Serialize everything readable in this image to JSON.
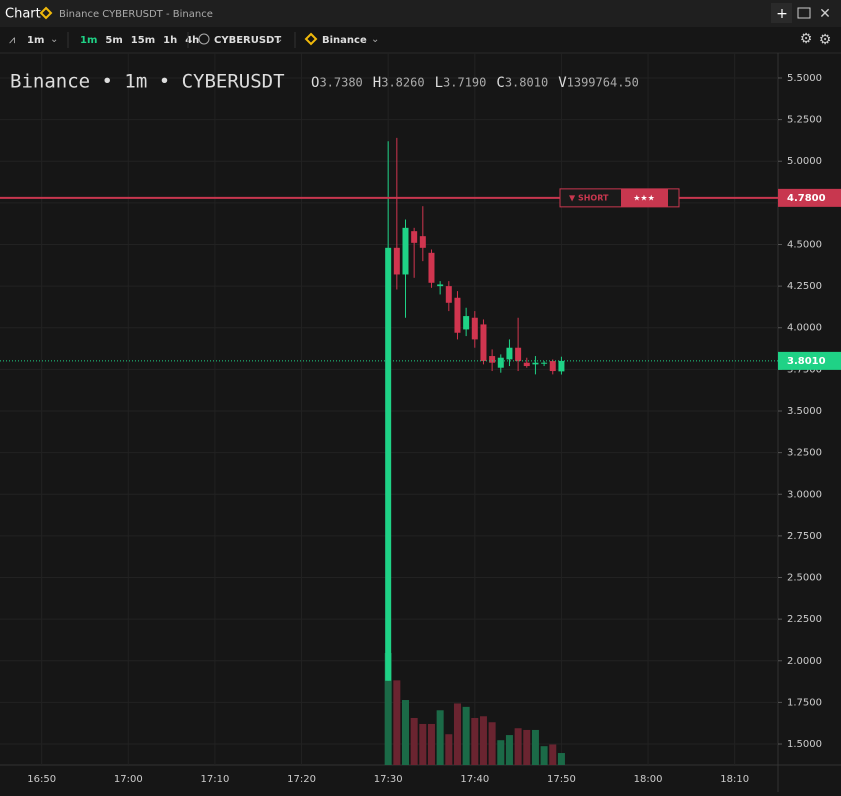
{
  "window": {
    "title": "Chart",
    "subtitle": "Binance CYBERUSDT - Binance"
  },
  "toolbar": {
    "interval": "1m",
    "intervals": [
      "1m",
      "5m",
      "15m",
      "1h",
      "4h"
    ],
    "symbol": "CYBERUSDT",
    "exchange": "Binance"
  },
  "chart_data": {
    "type": "candlestick",
    "title": "Binance • 1m • CYBERUSDT",
    "legend": [
      {
        "key": "O",
        "value": "3.7380"
      },
      {
        "key": "H",
        "value": "3.8260"
      },
      {
        "key": "L",
        "value": "3.7190"
      },
      {
        "key": "C",
        "value": "3.8010"
      },
      {
        "key": "V",
        "value": "1399764.50"
      }
    ],
    "x": [
      "17:30",
      "17:31",
      "17:32",
      "17:33",
      "17:34",
      "17:35",
      "17:36",
      "17:37",
      "17:38",
      "17:39",
      "17:40",
      "17:41",
      "17:42",
      "17:43",
      "17:44",
      "17:45",
      "17:46",
      "17:47",
      "17:48",
      "17:49",
      "17:50"
    ],
    "open": [
      1.88,
      4.48,
      4.32,
      4.58,
      4.55,
      4.45,
      4.25,
      4.25,
      4.18,
      3.99,
      4.06,
      4.02,
      3.83,
      3.76,
      3.81,
      3.88,
      3.79,
      3.78,
      3.79,
      3.8,
      3.738
    ],
    "high": [
      5.12,
      5.14,
      4.65,
      4.6,
      4.73,
      4.47,
      4.28,
      4.28,
      4.22,
      4.12,
      4.1,
      4.05,
      3.87,
      3.84,
      3.93,
      4.06,
      3.82,
      3.83,
      3.8,
      3.81,
      3.826
    ],
    "low": [
      1.88,
      4.23,
      4.06,
      4.3,
      4.4,
      4.24,
      4.2,
      4.1,
      3.93,
      3.95,
      3.88,
      3.78,
      3.74,
      3.73,
      3.77,
      3.74,
      3.76,
      3.72,
      3.77,
      3.72,
      3.719
    ],
    "close": [
      4.48,
      4.32,
      4.6,
      4.51,
      4.48,
      4.27,
      4.26,
      4.15,
      3.97,
      4.07,
      3.93,
      3.8,
      3.79,
      3.82,
      3.88,
      3.8,
      3.77,
      3.79,
      3.79,
      3.74,
      3.801
    ],
    "volume": [
      13100000,
      9900000,
      7600000,
      5500000,
      4800000,
      4800000,
      6400000,
      3600000,
      7200000,
      6800000,
      5500000,
      5700000,
      5000000,
      2900000,
      3500000,
      4300000,
      4100000,
      4100000,
      2200000,
      2400000,
      1399764.5
    ],
    "up_color": "#1fd286",
    "down_color": "#d0354f",
    "volume_up_color": "#1b6a47",
    "volume_down_color": "#6a2430",
    "volume_lim": [
      0,
      13100000
    ],
    "xlim": [
      "16:46",
      "18:15"
    ],
    "xticks": [
      "16:50",
      "17:00",
      "17:10",
      "17:20",
      "17:30",
      "17:40",
      "17:50",
      "18:00",
      "18:10"
    ],
    "ylim": [
      1.374,
      5.62
    ],
    "yticks": [
      {
        "value": 1.5,
        "label": "1.5000"
      },
      {
        "value": 1.75,
        "label": "1.7500"
      },
      {
        "value": 2,
        "label": "2.0000"
      },
      {
        "value": 2.25,
        "label": "2.2500"
      },
      {
        "value": 2.5,
        "label": "2.5000"
      },
      {
        "value": 2.75,
        "label": "2.7500"
      },
      {
        "value": 3,
        "label": "3.0000"
      },
      {
        "value": 3.25,
        "label": "3.2500"
      },
      {
        "value": 3.5,
        "label": "3.5000"
      },
      {
        "value": 3.75,
        "label": "3.7500"
      },
      {
        "value": 4,
        "label": "4.0000"
      },
      {
        "value": 4.25,
        "label": "4.2500"
      },
      {
        "value": 4.5,
        "label": "4.5000"
      },
      {
        "value": 4.75,
        "label": "4.7500"
      },
      {
        "value": 5,
        "label": "5.0000"
      },
      {
        "value": 5.25,
        "label": "5.2500"
      },
      {
        "value": 5.5,
        "label": "5.5000"
      }
    ],
    "grid": true,
    "price_lines": [
      {
        "value": 4.78,
        "label": "4.7800",
        "color": "#c8374f",
        "style": "solid"
      },
      {
        "value": 3.801,
        "label": "3.8010",
        "color": "#1fd286",
        "style": "dotted"
      }
    ],
    "order_badge": {
      "side": "▼ SHORT",
      "stars": "★★★"
    }
  }
}
